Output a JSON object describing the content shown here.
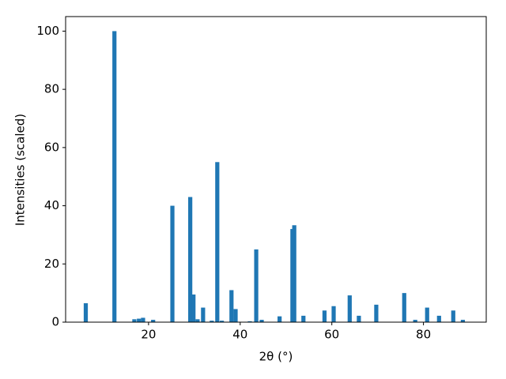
{
  "chart_data": {
    "type": "bar",
    "xlabel": "2θ (°)",
    "ylabel": "Intensities (scaled)",
    "color": "#1f77b4",
    "x": [
      6.3,
      12.55,
      16.9,
      17.9,
      18.8,
      21.0,
      25.2,
      29.1,
      29.8,
      30.7,
      31.9,
      33.8,
      35.0,
      36.0,
      38.1,
      39.0,
      42.1,
      43.5,
      44.7,
      48.6,
      51.4,
      51.8,
      53.8,
      58.4,
      60.4,
      63.9,
      65.9,
      69.7,
      75.8,
      78.2,
      80.8,
      83.4,
      86.5,
      88.6
    ],
    "values": [
      6.5,
      100,
      1,
      1.2,
      1.5,
      0.8,
      40,
      43,
      9.5,
      1,
      5,
      0.5,
      55,
      0.5,
      11,
      4.5,
      0.3,
      25,
      0.8,
      2,
      32,
      33.3,
      2.2,
      4,
      5.5,
      9.2,
      2.2,
      6,
      10,
      0.8,
      5,
      2.2,
      4,
      0.8
    ],
    "xlim": [
      1.9,
      93.7
    ],
    "ylim": [
      0,
      105
    ],
    "xticks": [
      20,
      40,
      60,
      80
    ],
    "yticks": [
      0,
      20,
      40,
      60,
      80,
      100
    ]
  }
}
